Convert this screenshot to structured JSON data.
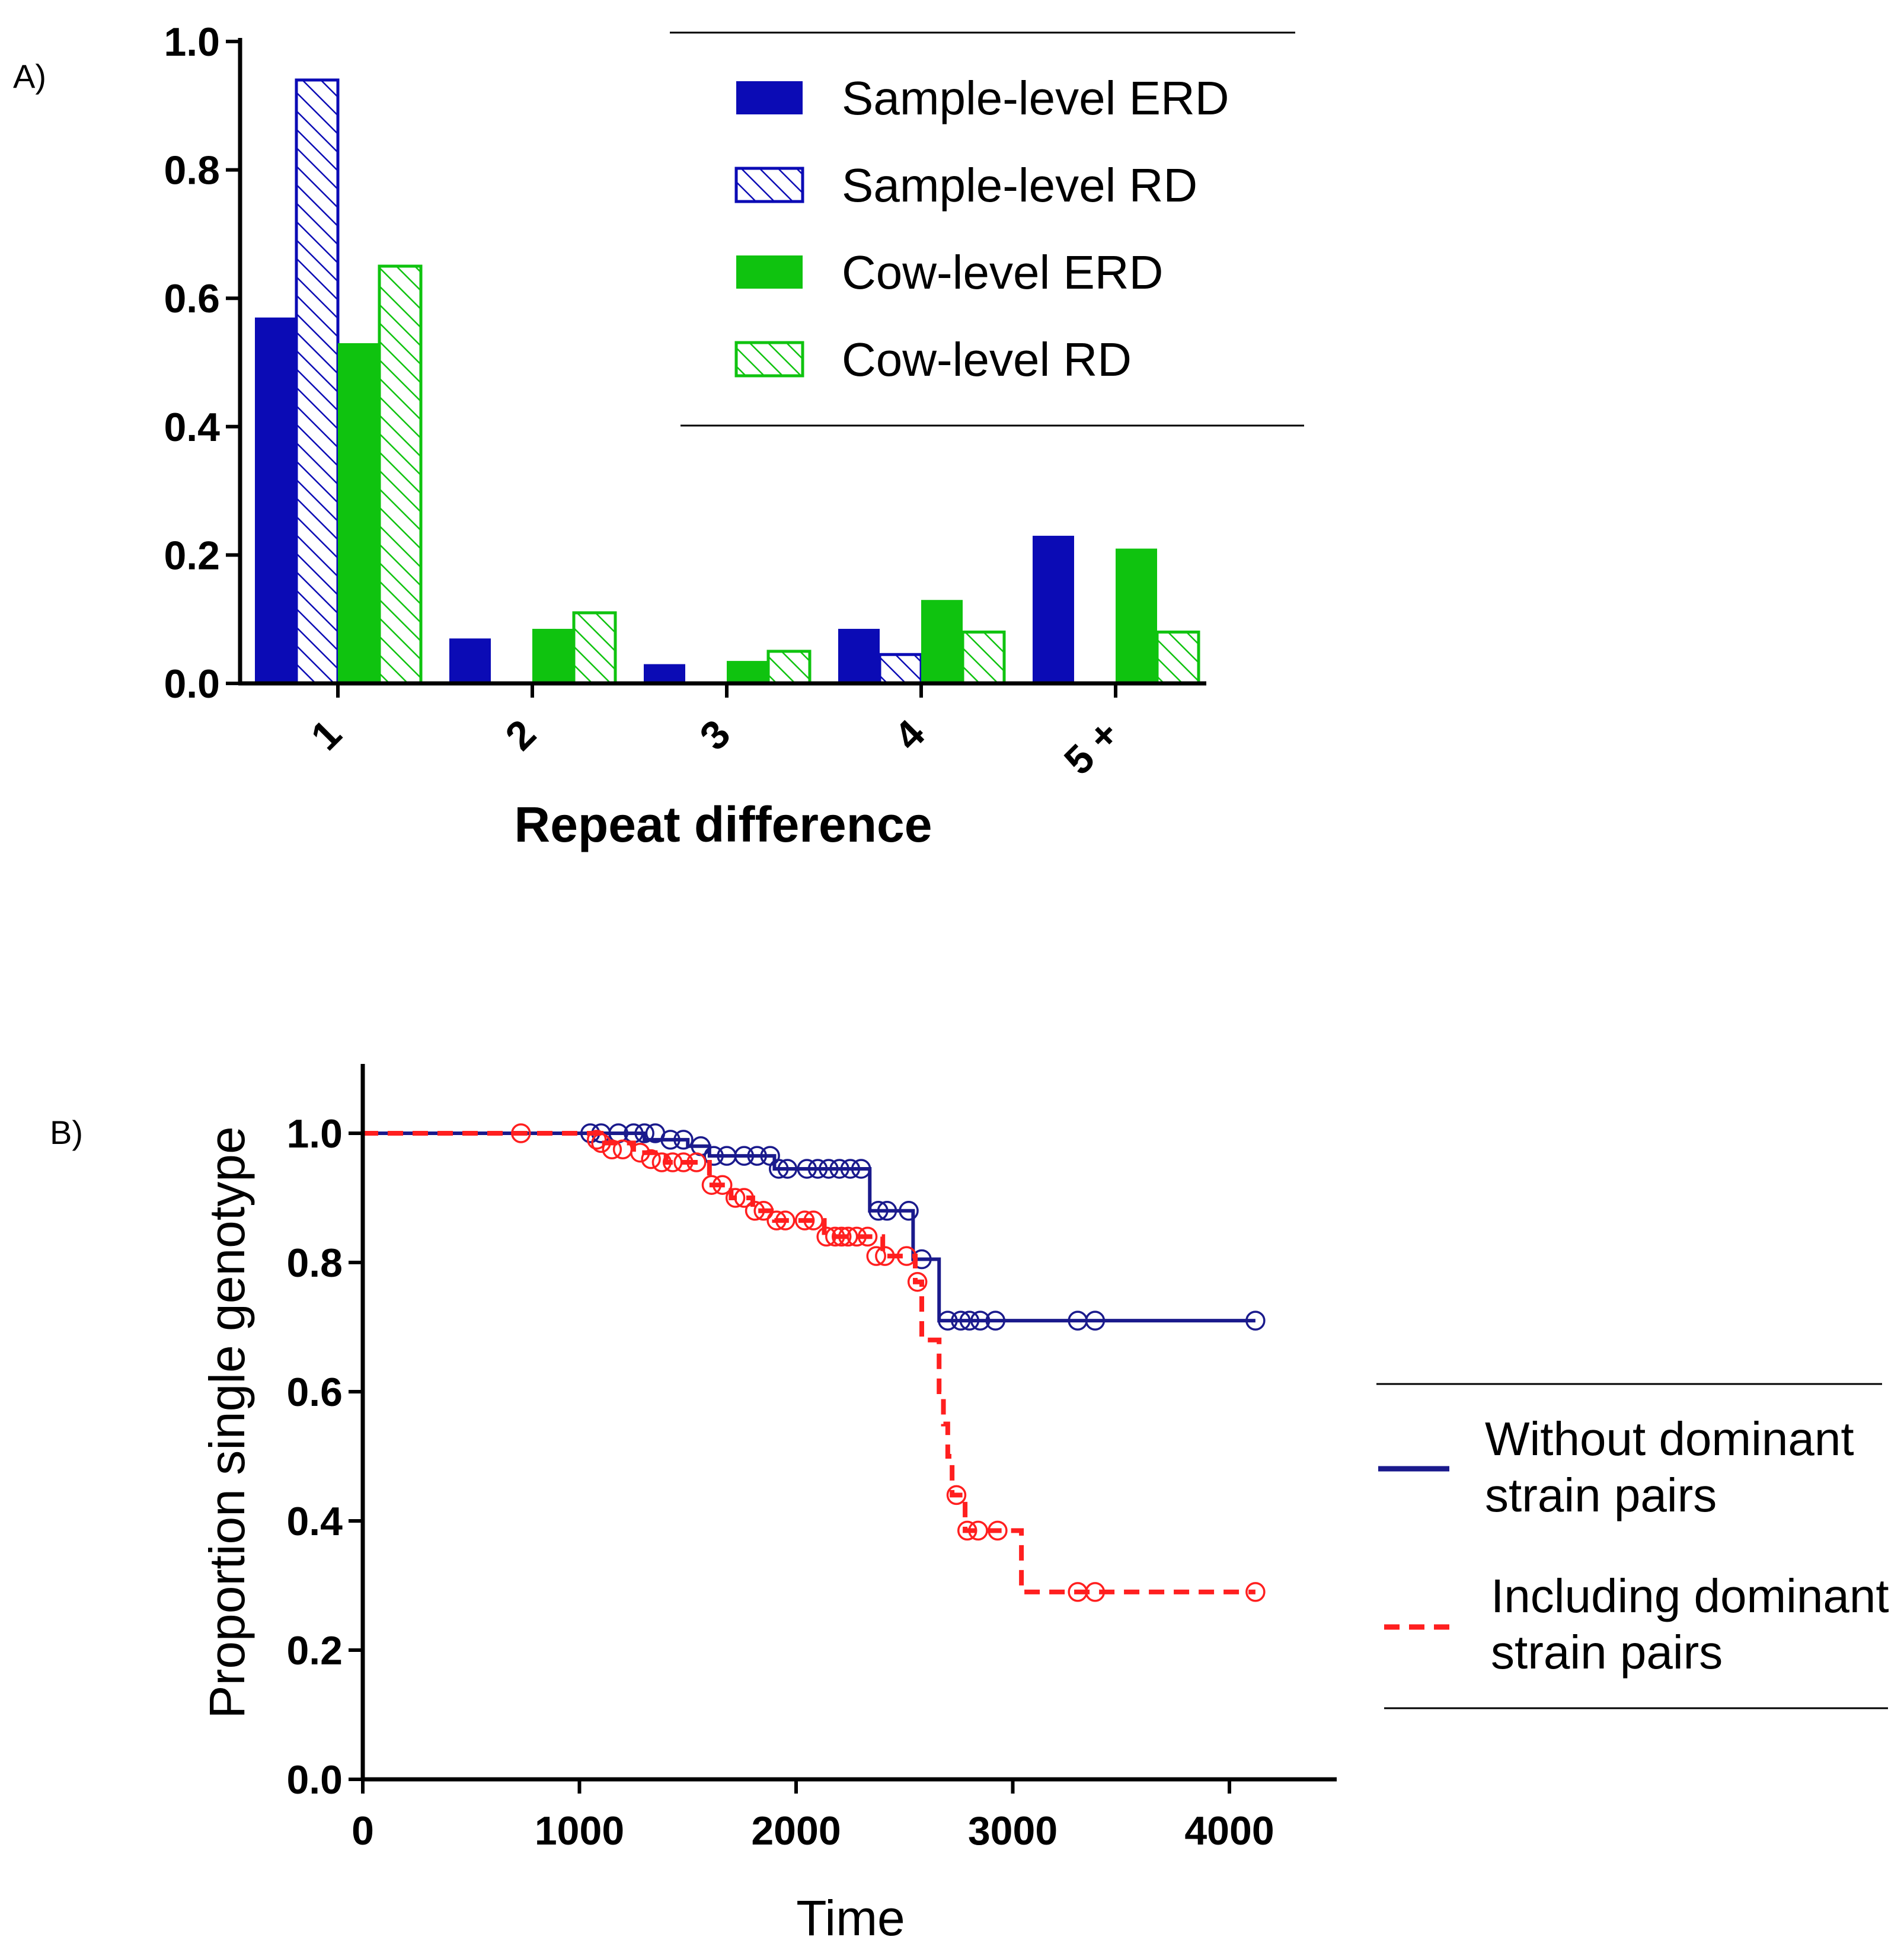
{
  "panel_a_label": "A)",
  "panel_b_label": "B)",
  "colors": {
    "sample_blue": "#0b0bb5",
    "cow_green": "#0fc30f",
    "km_blue": "#1a1a8c",
    "km_red": "#ff1f1f"
  },
  "chart_data": [
    {
      "type": "bar",
      "panel": "A)",
      "xlabel": "Repeat difference",
      "ylabel": "",
      "categories": [
        "1",
        "2",
        "3",
        "4",
        "5 +"
      ],
      "ylim": [
        0,
        1.0
      ],
      "yticks": [
        "0.0",
        "0.2",
        "0.4",
        "0.6",
        "0.8",
        "1.0"
      ],
      "legend_placement": "top-right",
      "series": [
        {
          "name": "Sample-level ERD",
          "style": "solid",
          "color": "#0b0bb5",
          "values": [
            0.57,
            0.07,
            0.03,
            0.085,
            0.23
          ]
        },
        {
          "name": "Sample-level RD",
          "style": "hatched",
          "color": "#0b0bb5",
          "values": [
            0.94,
            0,
            0,
            0.045,
            0
          ]
        },
        {
          "name": "Cow-level ERD",
          "style": "solid",
          "color": "#0fc30f",
          "values": [
            0.53,
            0.085,
            0.035,
            0.13,
            0.21
          ]
        },
        {
          "name": "Cow-level RD",
          "style": "hatched",
          "color": "#0fc30f",
          "values": [
            0.65,
            0.11,
            0.05,
            0.08,
            0.08
          ]
        }
      ]
    },
    {
      "type": "line",
      "panel": "B)",
      "xlabel": "Time",
      "ylabel": "Proportion single genotype",
      "xlim": [
        0,
        4500
      ],
      "ylim": [
        0,
        1.1
      ],
      "xticks": [
        "0",
        "1000",
        "2000",
        "3000",
        "4000"
      ],
      "yticks": [
        "0.0",
        "0.2",
        "0.4",
        "0.6",
        "0.8",
        "1.0"
      ],
      "legend_placement": "right",
      "series": [
        {
          "name": "Without dominant strain pairs",
          "style": "solid",
          "color": "#1a1a8c",
          "steps": [
            [
              0,
              1.0
            ],
            [
              1300,
              0.99
            ],
            [
              1500,
              0.98
            ],
            [
              1600,
              0.965
            ],
            [
              1900,
              0.945
            ],
            [
              2340,
              0.88
            ],
            [
              2540,
              0.805
            ],
            [
              2660,
              0.71
            ],
            [
              4120,
              0.71
            ]
          ],
          "censor": [
            [
              1050,
              1.0
            ],
            [
              1100,
              1.0
            ],
            [
              1180,
              1.0
            ],
            [
              1250,
              1.0
            ],
            [
              1300,
              1.0
            ],
            [
              1350,
              1.0
            ],
            [
              1420,
              0.99
            ],
            [
              1480,
              0.99
            ],
            [
              1560,
              0.98
            ],
            [
              1620,
              0.965
            ],
            [
              1680,
              0.965
            ],
            [
              1760,
              0.965
            ],
            [
              1820,
              0.965
            ],
            [
              1880,
              0.965
            ],
            [
              1920,
              0.945
            ],
            [
              1960,
              0.945
            ],
            [
              2050,
              0.945
            ],
            [
              2100,
              0.945
            ],
            [
              2150,
              0.945
            ],
            [
              2200,
              0.945
            ],
            [
              2250,
              0.945
            ],
            [
              2300,
              0.945
            ],
            [
              2380,
              0.88
            ],
            [
              2420,
              0.88
            ],
            [
              2520,
              0.88
            ],
            [
              2580,
              0.805
            ],
            [
              2700,
              0.71
            ],
            [
              2760,
              0.71
            ],
            [
              2800,
              0.71
            ],
            [
              2850,
              0.71
            ],
            [
              2920,
              0.71
            ],
            [
              3300,
              0.71
            ],
            [
              3380,
              0.71
            ],
            [
              4120,
              0.71
            ]
          ]
        },
        {
          "name": "Including dominant strain pairs",
          "style": "dashed",
          "color": "#ff1f1f",
          "steps": [
            [
              0,
              1.0
            ],
            [
              1100,
              0.985
            ],
            [
              1250,
              0.97
            ],
            [
              1400,
              0.955
            ],
            [
              1600,
              0.92
            ],
            [
              1700,
              0.9
            ],
            [
              1800,
              0.88
            ],
            [
              1900,
              0.865
            ],
            [
              2130,
              0.84
            ],
            [
              2400,
              0.81
            ],
            [
              2550,
              0.77
            ],
            [
              2580,
              0.68
            ],
            [
              2660,
              0.6
            ],
            [
              2680,
              0.55
            ],
            [
              2700,
              0.5
            ],
            [
              2720,
              0.44
            ],
            [
              2780,
              0.385
            ],
            [
              3040,
              0.29
            ],
            [
              4120,
              0.29
            ]
          ],
          "censor": [
            [
              730,
              1.0
            ],
            [
              1080,
              0.99
            ],
            [
              1100,
              0.985
            ],
            [
              1150,
              0.975
            ],
            [
              1200,
              0.975
            ],
            [
              1280,
              0.97
            ],
            [
              1330,
              0.96
            ],
            [
              1380,
              0.955
            ],
            [
              1430,
              0.955
            ],
            [
              1480,
              0.955
            ],
            [
              1540,
              0.955
            ],
            [
              1610,
              0.92
            ],
            [
              1660,
              0.92
            ],
            [
              1720,
              0.9
            ],
            [
              1760,
              0.9
            ],
            [
              1810,
              0.88
            ],
            [
              1850,
              0.88
            ],
            [
              1910,
              0.865
            ],
            [
              1950,
              0.865
            ],
            [
              2040,
              0.865
            ],
            [
              2080,
              0.865
            ],
            [
              2140,
              0.84
            ],
            [
              2180,
              0.84
            ],
            [
              2210,
              0.84
            ],
            [
              2240,
              0.84
            ],
            [
              2280,
              0.84
            ],
            [
              2330,
              0.84
            ],
            [
              2370,
              0.81
            ],
            [
              2410,
              0.81
            ],
            [
              2510,
              0.81
            ],
            [
              2560,
              0.77
            ],
            [
              2740,
              0.44
            ],
            [
              2790,
              0.385
            ],
            [
              2840,
              0.385
            ],
            [
              2930,
              0.385
            ],
            [
              3300,
              0.29
            ],
            [
              3380,
              0.29
            ],
            [
              4120,
              0.29
            ]
          ]
        }
      ],
      "legend_lines": [
        [
          "Without dominant",
          "strain pairs"
        ],
        [
          "Including dominant",
          "strain pairs"
        ]
      ]
    }
  ]
}
